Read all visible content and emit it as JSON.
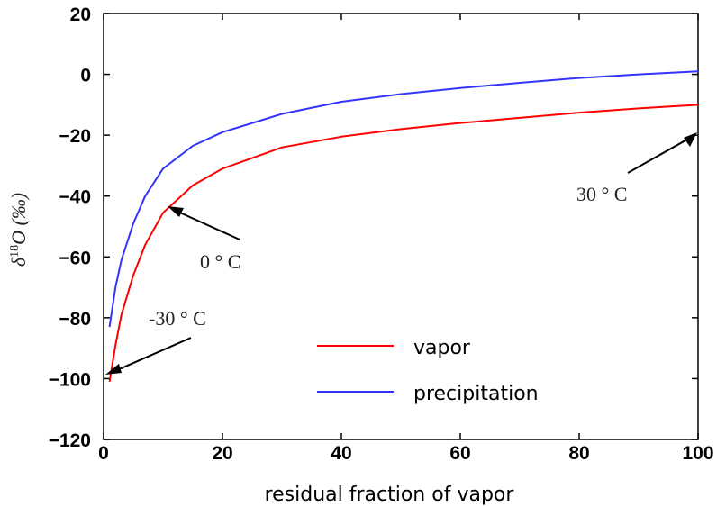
{
  "chart_data": {
    "type": "line",
    "xlabel": "residual fraction of vapor",
    "ylabel": "δ18O (‰)",
    "xlim": [
      0,
      100
    ],
    "ylim": [
      -120,
      20
    ],
    "xticks": [
      "0",
      "20",
      "40",
      "60",
      "80",
      "100"
    ],
    "yticks": [
      "20",
      "0",
      "−20",
      "−40",
      "−60",
      "−80",
      "−100",
      "−120"
    ],
    "grid": false,
    "legend_position": "bottom-right",
    "series": [
      {
        "name": "vapor",
        "color": "#ff0000",
        "x": [
          1,
          2,
          3,
          5,
          7,
          10,
          15,
          20,
          30,
          40,
          50,
          60,
          70,
          80,
          90,
          100
        ],
        "y": [
          -101,
          -89,
          -79,
          -66,
          -56,
          -45.5,
          -36.5,
          -31,
          -24,
          -20.5,
          -18,
          -16,
          -14.3,
          -12.6,
          -11.2,
          -10
        ]
      },
      {
        "name": "precipitation",
        "color": "#3333ff",
        "x": [
          1,
          2,
          3,
          5,
          7,
          10,
          15,
          20,
          30,
          40,
          50,
          60,
          70,
          80,
          90,
          100
        ],
        "y": [
          -83,
          -70,
          -61,
          -49,
          -40,
          -31,
          -23.5,
          -19,
          -13,
          -9,
          -6.5,
          -4.5,
          -2.8,
          -1.2,
          0,
          1
        ]
      }
    ],
    "annotations": [
      {
        "text": "-30 ° C",
        "point": [
          0.5,
          -100
        ]
      },
      {
        "text": "0 ° C",
        "point": [
          10.5,
          -44.5
        ]
      },
      {
        "text": "30 ° C",
        "point": [
          100,
          -10
        ]
      }
    ]
  }
}
